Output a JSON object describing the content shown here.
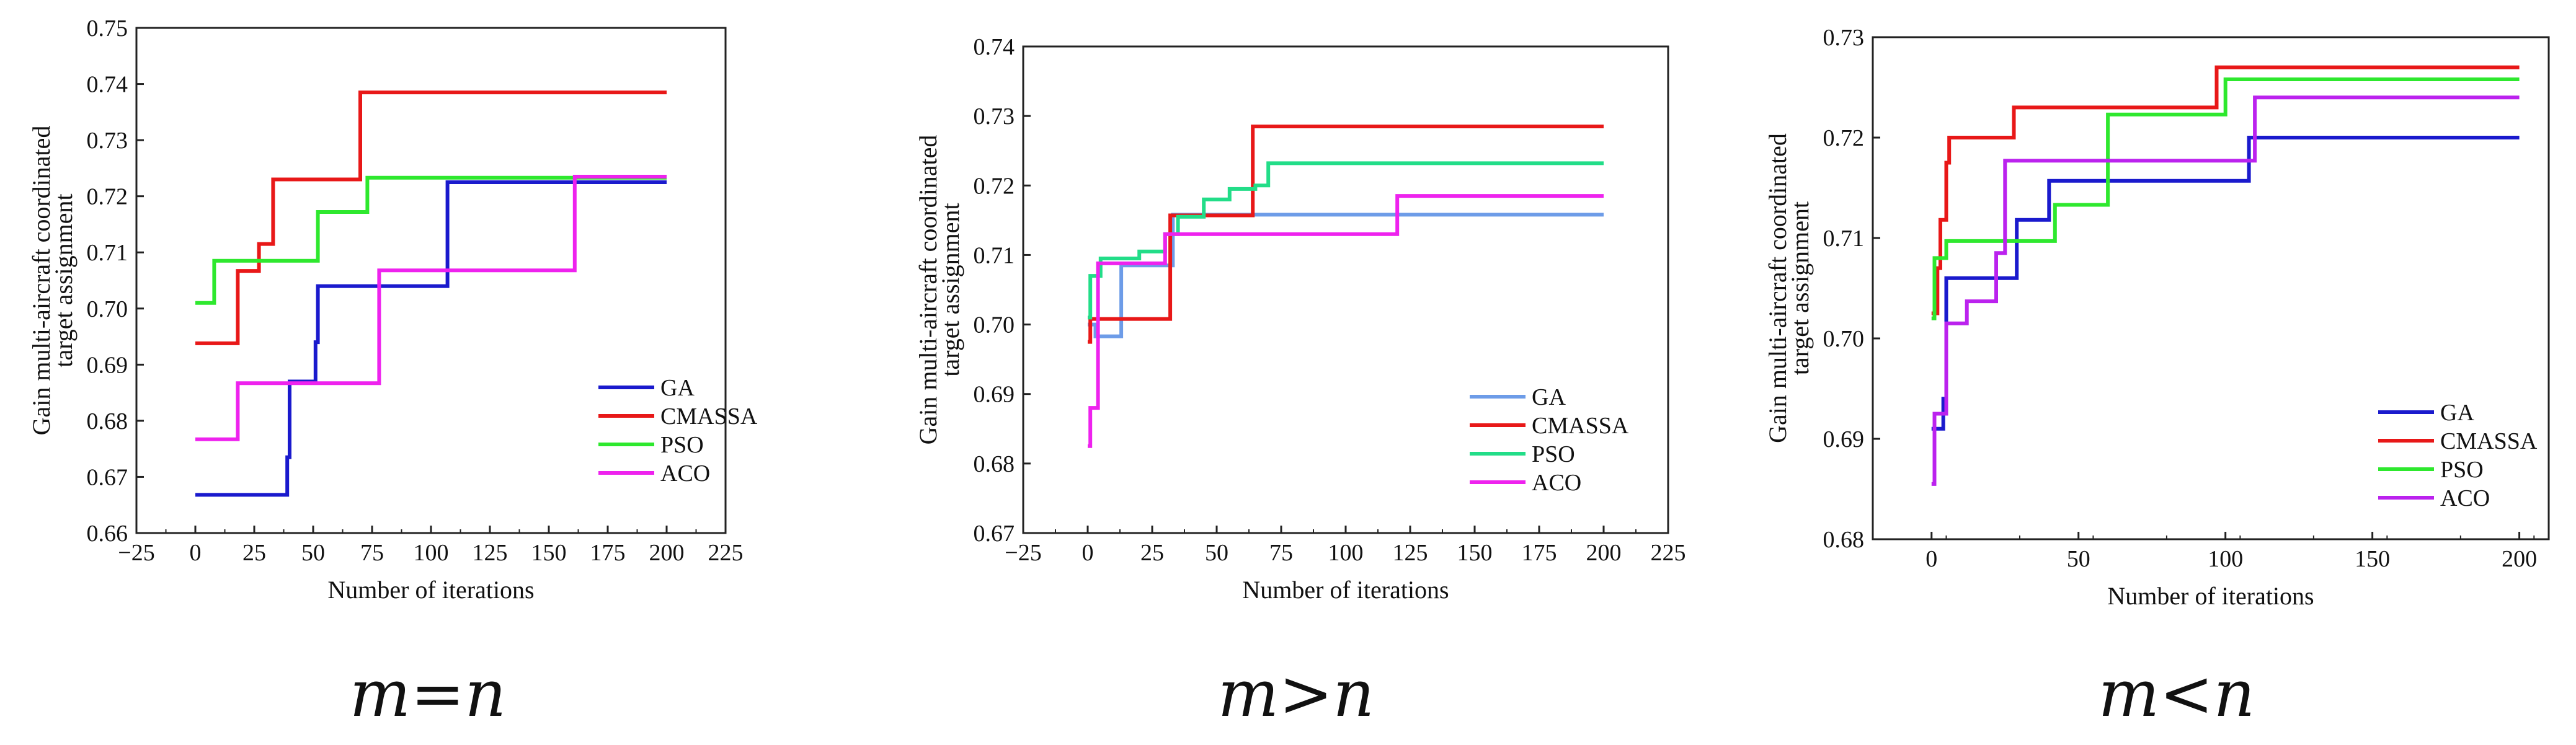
{
  "chart_data": [
    {
      "type": "line",
      "caption": "m=n",
      "xlabel": "Number of iterations",
      "ylabel": [
        "Gain multi-aircraft coordinated",
        "target assignment"
      ],
      "xlim": [
        -25,
        225
      ],
      "ylim": [
        0.66,
        0.75
      ],
      "xticks": [
        "−25",
        "0",
        "25",
        "50",
        "75",
        "100",
        "125",
        "150",
        "175",
        "200",
        "225"
      ],
      "yticks": [
        "0.66",
        "0.67",
        "0.68",
        "0.69",
        "0.70",
        "0.71",
        "0.72",
        "0.73",
        "0.74",
        "0.75"
      ],
      "series": [
        {
          "name": "GA",
          "color": "#1a1acd",
          "steps": [
            [
              0,
              0.6668
            ],
            [
              38,
              0.6668
            ],
            [
              39,
              0.6735
            ],
            [
              40,
              0.687
            ],
            [
              50,
              0.687
            ],
            [
              51,
              0.694
            ],
            [
              52,
              0.704
            ],
            [
              105,
              0.704
            ],
            [
              107,
              0.7225
            ],
            [
              200,
              0.7225
            ]
          ]
        },
        {
          "name": "CMASSA",
          "color": "#e81818",
          "steps": [
            [
              0,
              0.6938
            ],
            [
              16,
              0.6938
            ],
            [
              18,
              0.7067
            ],
            [
              25,
              0.7067
            ],
            [
              27,
              0.7115
            ],
            [
              31,
              0.7115
            ],
            [
              33,
              0.723
            ],
            [
              68,
              0.723
            ],
            [
              70,
              0.7385
            ],
            [
              200,
              0.7385
            ]
          ]
        },
        {
          "name": "PSO",
          "color": "#2ee82e",
          "steps": [
            [
              0,
              0.701
            ],
            [
              6,
              0.701
            ],
            [
              8,
              0.7085
            ],
            [
              50,
              0.7085
            ],
            [
              52,
              0.7172
            ],
            [
              71,
              0.7172
            ],
            [
              73,
              0.7233
            ],
            [
              200,
              0.7233
            ]
          ]
        },
        {
          "name": "ACO",
          "color": "#ee22ee",
          "steps": [
            [
              0,
              0.6767
            ],
            [
              17,
              0.6767
            ],
            [
              18,
              0.6867
            ],
            [
              76,
              0.6867
            ],
            [
              78,
              0.7068
            ],
            [
              160,
              0.7068
            ],
            [
              161,
              0.7235
            ],
            [
              200,
              0.7235
            ]
          ]
        }
      ]
    },
    {
      "type": "line",
      "caption": "m>n",
      "xlabel": "Number of iterations",
      "ylabel": [
        "Gain multi-aircraft coordinated",
        "target assignment"
      ],
      "xlim": [
        -25,
        225
      ],
      "ylim": [
        0.67,
        0.74
      ],
      "xticks": [
        "−25",
        "0",
        "25",
        "50",
        "75",
        "100",
        "125",
        "150",
        "175",
        "200",
        "225"
      ],
      "yticks": [
        "0.67",
        "0.68",
        "0.69",
        "0.70",
        "0.71",
        "0.72",
        "0.73",
        "0.74"
      ],
      "series": [
        {
          "name": "GA",
          "color": "#6d9ce8",
          "steps": [
            [
              0,
              0.7
            ],
            [
              2,
              0.7
            ],
            [
              3,
              0.6983
            ],
            [
              12,
              0.6983
            ],
            [
              13,
              0.7085
            ],
            [
              31,
              0.7085
            ],
            [
              33,
              0.7158
            ],
            [
              200,
              0.7158
            ]
          ]
        },
        {
          "name": "CMASSA",
          "color": "#e81818",
          "steps": [
            [
              0,
              0.6975
            ],
            [
              1,
              0.7008
            ],
            [
              30,
              0.7008
            ],
            [
              32,
              0.7157
            ],
            [
              62,
              0.7157
            ],
            [
              64,
              0.7285
            ],
            [
              200,
              0.7285
            ]
          ]
        },
        {
          "name": "PSO",
          "color": "#22dd88",
          "steps": [
            [
              0,
              0.701
            ],
            [
              1,
              0.707
            ],
            [
              5,
              0.7095
            ],
            [
              20,
              0.7105
            ],
            [
              30,
              0.713
            ],
            [
              35,
              0.7155
            ],
            [
              45,
              0.718
            ],
            [
              55,
              0.7195
            ],
            [
              65,
              0.72
            ],
            [
              70,
              0.7232
            ],
            [
              200,
              0.7232
            ]
          ]
        },
        {
          "name": "ACO",
          "color": "#ee22ee",
          "steps": [
            [
              0,
              0.6825
            ],
            [
              1,
              0.688
            ],
            [
              3,
              0.688
            ],
            [
              4,
              0.7088
            ],
            [
              28,
              0.7088
            ],
            [
              30,
              0.713
            ],
            [
              118,
              0.713
            ],
            [
              120,
              0.7185
            ],
            [
              200,
              0.7185
            ]
          ]
        }
      ]
    },
    {
      "type": "line",
      "caption": "m<n",
      "xlabel": "Number of iterations",
      "ylabel": [
        "Gain multi-aircraft coordinated",
        "target assignment"
      ],
      "xlim": [
        -20,
        210
      ],
      "ylim": [
        0.68,
        0.73
      ],
      "xticks": [
        "0",
        "50",
        "100",
        "150",
        "200"
      ],
      "yticks": [
        "0.68",
        "0.69",
        "0.70",
        "0.71",
        "0.72",
        "0.73"
      ],
      "series": [
        {
          "name": "GA",
          "color": "#1a1acd",
          "steps": [
            [
              0,
              0.691
            ],
            [
              3,
              0.691
            ],
            [
              4,
              0.694
            ],
            [
              5,
              0.706
            ],
            [
              27,
              0.706
            ],
            [
              29,
              0.7118
            ],
            [
              38,
              0.7118
            ],
            [
              40,
              0.7157
            ],
            [
              106,
              0.7157
            ],
            [
              108,
              0.72
            ],
            [
              200,
              0.72
            ]
          ]
        },
        {
          "name": "CMASSA",
          "color": "#e81818",
          "steps": [
            [
              0,
              0.7025
            ],
            [
              2,
              0.707
            ],
            [
              3,
              0.7118
            ],
            [
              5,
              0.7175
            ],
            [
              6,
              0.72
            ],
            [
              26,
              0.72
            ],
            [
              28,
              0.723
            ],
            [
              95,
              0.723
            ],
            [
              97,
              0.727
            ],
            [
              200,
              0.727
            ]
          ]
        },
        {
          "name": "PSO",
          "color": "#2ee82e",
          "steps": [
            [
              0,
              0.702
            ],
            [
              1,
              0.708
            ],
            [
              5,
              0.7097
            ],
            [
              40,
              0.7097
            ],
            [
              42,
              0.7133
            ],
            [
              58,
              0.7133
            ],
            [
              60,
              0.7223
            ],
            [
              98,
              0.7223
            ],
            [
              100,
              0.7258
            ],
            [
              200,
              0.7258
            ]
          ]
        },
        {
          "name": "ACO",
          "color": "#bb22ee",
          "steps": [
            [
              0,
              0.6855
            ],
            [
              1,
              0.6925
            ],
            [
              5,
              0.7015
            ],
            [
              10,
              0.7015
            ],
            [
              12,
              0.7037
            ],
            [
              20,
              0.7037
            ],
            [
              22,
              0.7085
            ],
            [
              25,
              0.7177
            ],
            [
              108,
              0.7177
            ],
            [
              110,
              0.724
            ],
            [
              200,
              0.724
            ]
          ]
        }
      ]
    }
  ]
}
